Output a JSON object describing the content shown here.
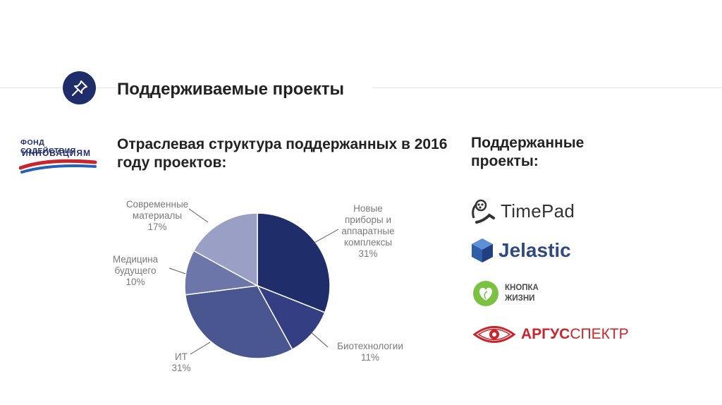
{
  "slide": {
    "title": "Поддерживаемые проекты"
  },
  "fund_logo": {
    "line1": "ФОНД СОДЕЙСТВИЯ",
    "line2": "ИННОВАЦИЯМ"
  },
  "chart_data": {
    "type": "pie",
    "title": "Отраслевая структура поддержанных в 2016 году проектов:",
    "slices": [
      {
        "label": "Новые приборы и аппаратные комплексы",
        "value": 31,
        "display": "31%",
        "color": "#1f2d6b"
      },
      {
        "label": "Биотехнологии",
        "value": 11,
        "display": "11%",
        "color": "#343f83"
      },
      {
        "label": "ИТ",
        "value": 31,
        "display": "31%",
        "color": "#4a5690"
      },
      {
        "label": "Медицина будущего",
        "value": 10,
        "display": "10%",
        "color": "#6d76a8"
      },
      {
        "label": "Современные материалы",
        "value": 17,
        "display": "17%",
        "color": "#9aa0c5"
      }
    ],
    "label_lines": [
      [
        "Новые",
        "приборы и",
        "аппаратные",
        "комплексы",
        "31%"
      ],
      [
        "Биотехнологии",
        "11%"
      ],
      [
        "ИТ",
        "31%"
      ],
      [
        "Медицина",
        "будущего",
        "10%"
      ],
      [
        "Современные",
        "материалы",
        "17%"
      ]
    ],
    "legend": "none (labels beside slices)"
  },
  "supported": {
    "title": "Поддержанные проекты:",
    "logos": [
      {
        "name": "TimePad",
        "icon": "timepad-icon",
        "color": "#333333"
      },
      {
        "name": "Jelastic",
        "icon": "jelastic-cube-icon",
        "color": "#2f4a7e"
      },
      {
        "name_line1": "КНОПКА",
        "name_line2": "ЖИЗНИ",
        "icon": "heart-leaf-icon",
        "color": "#7cc242"
      },
      {
        "name_part1": "АРГУС",
        "name_part2": "СПЕКТР",
        "icon": "eye-icon",
        "color": "#c8262d"
      }
    ]
  }
}
